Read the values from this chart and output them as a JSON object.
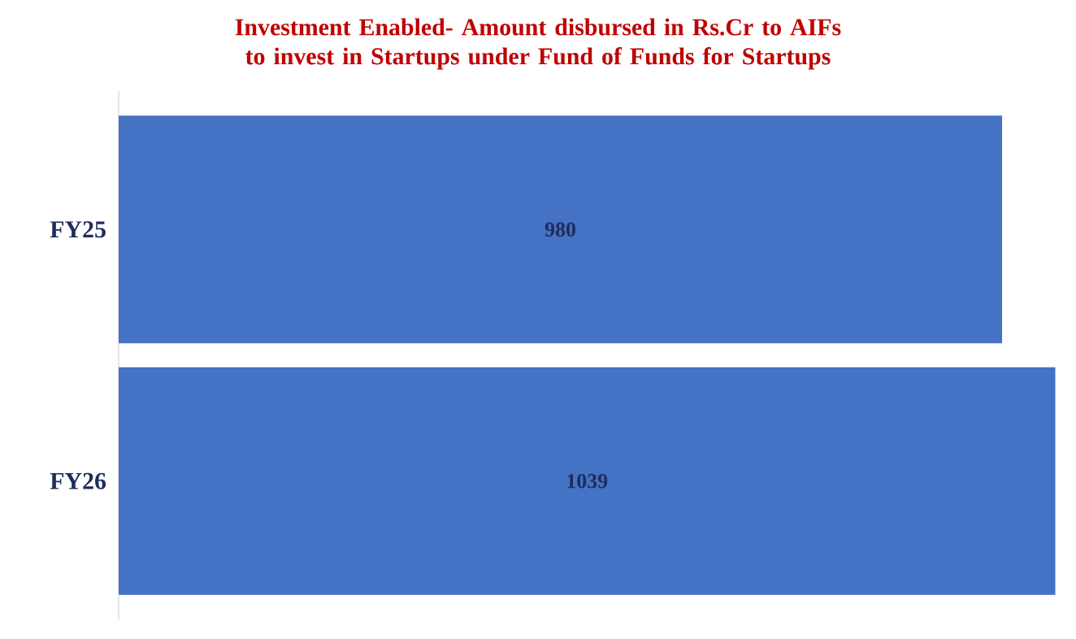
{
  "chart_data": {
    "type": "bar",
    "orientation": "horizontal",
    "title": "Investment Enabled- Amount disbursed in Rs.Cr to AIFs to invest in Startups under Fund of Funds for Startups",
    "categories": [
      "FY25",
      "FY26"
    ],
    "values": [
      980,
      1039
    ],
    "color": "#4472c4",
    "data_labels": true,
    "tick_labels": "y"
  }
}
